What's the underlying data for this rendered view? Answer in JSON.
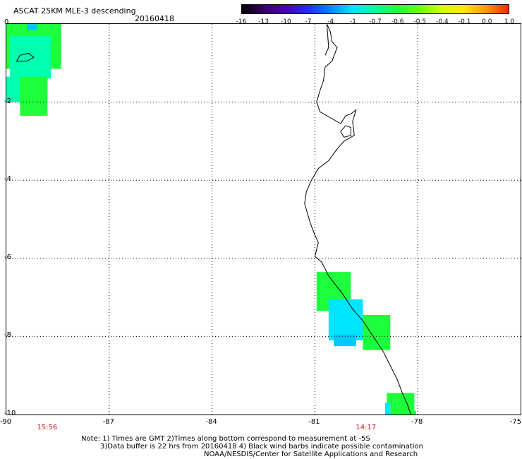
{
  "header": {
    "title": "ASCAT 25KM MLE-3 descending",
    "date": "20160418"
  },
  "colorbar": {
    "labels": [
      "-16",
      "-13",
      "-10",
      "-7",
      "-4",
      "-1",
      "-0.7",
      "-0.6",
      "-0.5",
      "-0.4",
      "-0.1",
      "0.0",
      "1.0"
    ],
    "colors": [
      "#000000",
      "#3a0066",
      "#4b00b4",
      "#1e2dff",
      "#0088ff",
      "#00e6ff",
      "#00ff9a",
      "#1eff3c",
      "#6eff00",
      "#d2ff00",
      "#ffe600",
      "#ff9600",
      "#ff2800"
    ]
  },
  "axes": {
    "lat_labels": [
      "0",
      "-2",
      "-4",
      "-6",
      "-8",
      "-10"
    ],
    "lon_labels": [
      "-90",
      "-87",
      "-84",
      "-81",
      "-78",
      "-75"
    ],
    "lat_range": [
      -10,
      0
    ],
    "lon_range": [
      -90,
      -75
    ],
    "gridlines": "dotted"
  },
  "swath_times": [
    {
      "time": "15:56",
      "lon": -89.6
    },
    {
      "time": "14:17",
      "lon": -80.3
    }
  ],
  "footer": {
    "note1": "Note: 1) Times are GMT 2)Times along bottom correspond to measurement at -5S",
    "note2": "3)Data buffer is 22 hrs from 20160418 4) Black wind barbs indicate possible contamination",
    "credit": "NOAA/NESDIS/Center for Satellite Applications and Research"
  },
  "data_cells": [
    {
      "lon0": -90.0,
      "lon1": -88.4,
      "lat0": 0.0,
      "lat1": -1.15,
      "color": "#1eff3c"
    },
    {
      "lon0": -89.9,
      "lon1": -88.7,
      "lat0": -0.3,
      "lat1": -1.4,
      "color": "#00ffb0"
    },
    {
      "lon0": -89.4,
      "lon1": -89.1,
      "lat0": 0.0,
      "lat1": -0.15,
      "color": "#00c8ff"
    },
    {
      "lon0": -90.0,
      "lon1": -88.8,
      "lat0": -1.35,
      "lat1": -2.0,
      "color": "#00ffb0"
    },
    {
      "lon0": -89.6,
      "lon1": -88.8,
      "lat0": -1.35,
      "lat1": -2.35,
      "color": "#1eff3c"
    },
    {
      "lon0": -80.95,
      "lon1": -79.95,
      "lat0": -6.35,
      "lat1": -7.35,
      "color": "#1eff3c"
    },
    {
      "lon0": -80.6,
      "lon1": -79.6,
      "lat0": -7.05,
      "lat1": -8.1,
      "color": "#00e6ff"
    },
    {
      "lon0": -80.45,
      "lon1": -79.8,
      "lat0": -7.95,
      "lat1": -8.25,
      "color": "#00c8ff"
    },
    {
      "lon0": -79.6,
      "lon1": -78.8,
      "lat0": -7.45,
      "lat1": -8.35,
      "color": "#1eff3c"
    },
    {
      "lon0": -78.9,
      "lon1": -78.1,
      "lat0": -9.45,
      "lat1": -9.7,
      "color": "#1eff3c"
    },
    {
      "lon0": -78.8,
      "lon1": -78.1,
      "lat0": -9.65,
      "lat1": -10.0,
      "color": "#1eff3c"
    },
    {
      "lon0": -78.95,
      "lon1": -78.8,
      "lat0": -9.7,
      "lat1": -10.0,
      "color": "#00e6ff"
    },
    {
      "lon0": -78.2,
      "lon1": -78.05,
      "lat0": -9.9,
      "lat1": -10.0,
      "color": "#1eff3c"
    }
  ],
  "coastline": [
    [
      -80.65,
      0.0
    ],
    [
      -80.55,
      -0.2
    ],
    [
      -80.5,
      -0.45
    ],
    [
      -80.35,
      -0.6
    ],
    [
      -80.5,
      -0.95
    ],
    [
      -80.7,
      -1.1
    ],
    [
      -80.75,
      -1.45
    ],
    [
      -80.85,
      -1.7
    ],
    [
      -80.95,
      -2.0
    ],
    [
      -80.85,
      -2.25
    ],
    [
      -80.25,
      -2.55
    ],
    [
      -80.1,
      -2.35
    ],
    [
      -79.95,
      -2.3
    ],
    [
      -79.8,
      -2.2
    ],
    [
      -79.9,
      -2.5
    ],
    [
      -79.85,
      -2.85
    ],
    [
      -80.15,
      -3.0
    ],
    [
      -80.35,
      -3.2
    ],
    [
      -80.6,
      -3.5
    ],
    [
      -80.9,
      -3.7
    ],
    [
      -81.1,
      -4.0
    ],
    [
      -81.25,
      -4.3
    ],
    [
      -81.3,
      -4.6
    ],
    [
      -81.15,
      -5.05
    ],
    [
      -81.05,
      -5.3
    ],
    [
      -80.9,
      -5.6
    ],
    [
      -81.0,
      -5.95
    ],
    [
      -80.8,
      -6.1
    ],
    [
      -80.6,
      -6.45
    ],
    [
      -80.2,
      -6.9
    ],
    [
      -79.9,
      -7.3
    ],
    [
      -79.6,
      -7.6
    ],
    [
      -79.3,
      -8.0
    ],
    [
      -79.0,
      -8.4
    ],
    [
      -78.8,
      -8.75
    ],
    [
      -78.6,
      -9.1
    ],
    [
      -78.45,
      -9.45
    ],
    [
      -78.3,
      -9.75
    ],
    [
      -78.2,
      -10.0
    ]
  ],
  "coast_north": [
    [
      -80.65,
      0.0
    ],
    [
      -80.6,
      -0.6
    ],
    [
      -80.7,
      -0.8
    ]
  ],
  "island_north": [
    [
      -89.6,
      -0.8
    ],
    [
      -89.35,
      -0.75
    ],
    [
      -89.2,
      -0.85
    ],
    [
      -89.4,
      -0.95
    ],
    [
      -89.7,
      -0.95
    ],
    [
      -89.6,
      -0.8
    ]
  ],
  "island_puna": [
    [
      -80.1,
      -2.6
    ],
    [
      -79.95,
      -2.65
    ],
    [
      -79.95,
      -2.85
    ],
    [
      -80.15,
      -2.9
    ],
    [
      -80.25,
      -2.75
    ],
    [
      -80.1,
      -2.6
    ]
  ]
}
